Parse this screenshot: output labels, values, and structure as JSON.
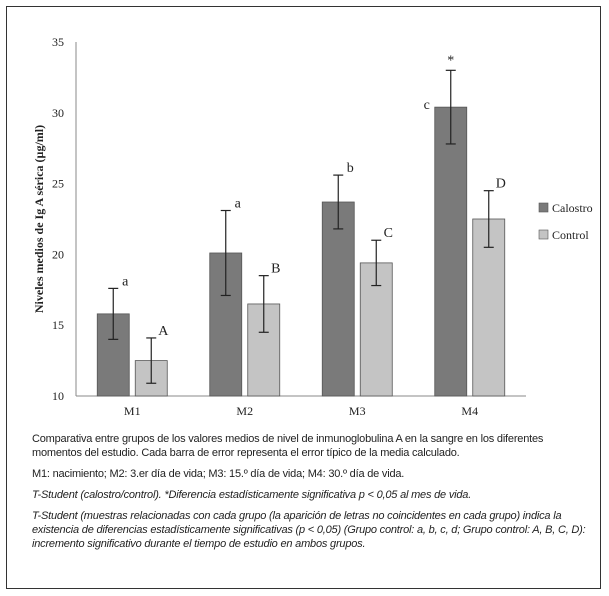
{
  "chart_data": {
    "type": "bar",
    "categories": [
      "M1",
      "M2",
      "M3",
      "M4"
    ],
    "ylabel": "Niveles medios de Ig A sérica (µg/ml)",
    "ylim": [
      10,
      35
    ],
    "yticks": [
      10,
      15,
      20,
      25,
      30,
      35
    ],
    "grid": false,
    "legend_position": "right",
    "series": [
      {
        "name": "Calostro",
        "color": "#7a7a7a",
        "values": [
          15.8,
          20.1,
          23.7,
          30.4
        ],
        "errors": [
          1.8,
          3.0,
          1.9,
          2.6
        ],
        "labels": [
          "a",
          "a",
          "b",
          "c"
        ]
      },
      {
        "name": "Control",
        "color": "#c4c4c4",
        "values": [
          12.5,
          16.5,
          19.4,
          22.5
        ],
        "errors": [
          1.6,
          2.0,
          1.6,
          2.0
        ],
        "labels": [
          "A",
          "B",
          "C",
          "D"
        ]
      }
    ],
    "annotations": [
      {
        "text": "*",
        "category": "M4",
        "series": "Calostro"
      }
    ]
  },
  "caption": {
    "p1": "Comparativa entre grupos de los valores medios de nivel de inmunoglobulina A en la sangre en los diferentes momentos del estudio. Cada barra de error representa el error típico de la media calculado.",
    "p2": "M1: nacimiento; M2: 3.er día de vida; M3: 15.º día de vida; M4: 30.º día de vida.",
    "p3": "T-Student (calostro/control). *Diferencia estadísticamente significativa p < 0,05 al mes de vida.",
    "p4": "T-Student (muestras relacionadas con cada grupo (la aparición de letras no coincidentes en cada grupo) indica la existencia de diferencias estadísticamente significativas (p < 0,05) (Grupo control: a, b, c, d; Grupo control: A, B, C, D): incremento significativo durante el tiempo de estudio en ambos grupos."
  }
}
